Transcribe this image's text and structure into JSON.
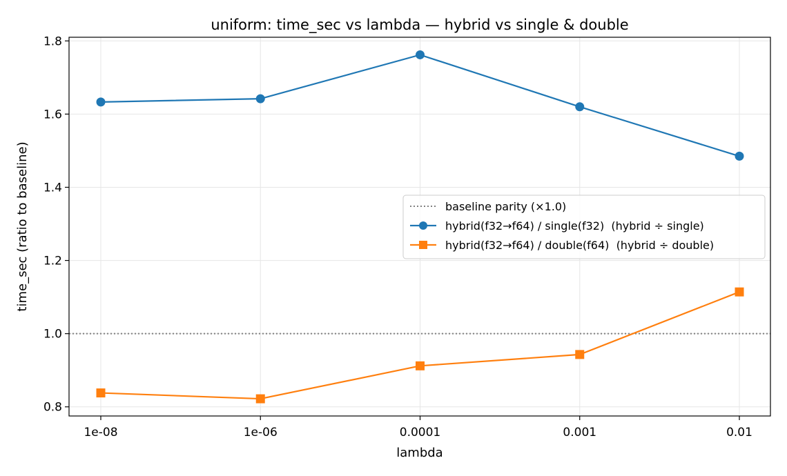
{
  "chart_data": {
    "type": "line",
    "title": "uniform: time_sec vs lambda — hybrid vs single & double",
    "xlabel": "lambda",
    "ylabel": "time_sec (ratio to baseline)",
    "categories": [
      "1e-08",
      "1e-06",
      "0.0001",
      "0.001",
      "0.01"
    ],
    "ylim": [
      0.775,
      1.81
    ],
    "yticks": [
      0.8,
      1.0,
      1.2,
      1.4,
      1.6,
      1.8
    ],
    "ytick_labels": [
      "0.8",
      "1.0",
      "1.2",
      "1.4",
      "1.6",
      "1.8"
    ],
    "grid": true,
    "legend_position": "center-right",
    "reference_line": {
      "label": "baseline parity (×1.0)",
      "y": 1.0,
      "color": "#7f7f7f",
      "style": "dotted"
    },
    "series": [
      {
        "name": "hybrid(f32→f64) / single(f32)  (hybrid ÷ single)",
        "values": [
          1.633,
          1.642,
          1.762,
          1.62,
          1.485
        ],
        "color": "#1f77b4",
        "marker": "circle"
      },
      {
        "name": "hybrid(f32→f64) / double(f64)  (hybrid ÷ double)",
        "values": [
          0.838,
          0.822,
          0.912,
          0.943,
          1.114
        ],
        "color": "#ff7f0e",
        "marker": "square"
      }
    ]
  }
}
